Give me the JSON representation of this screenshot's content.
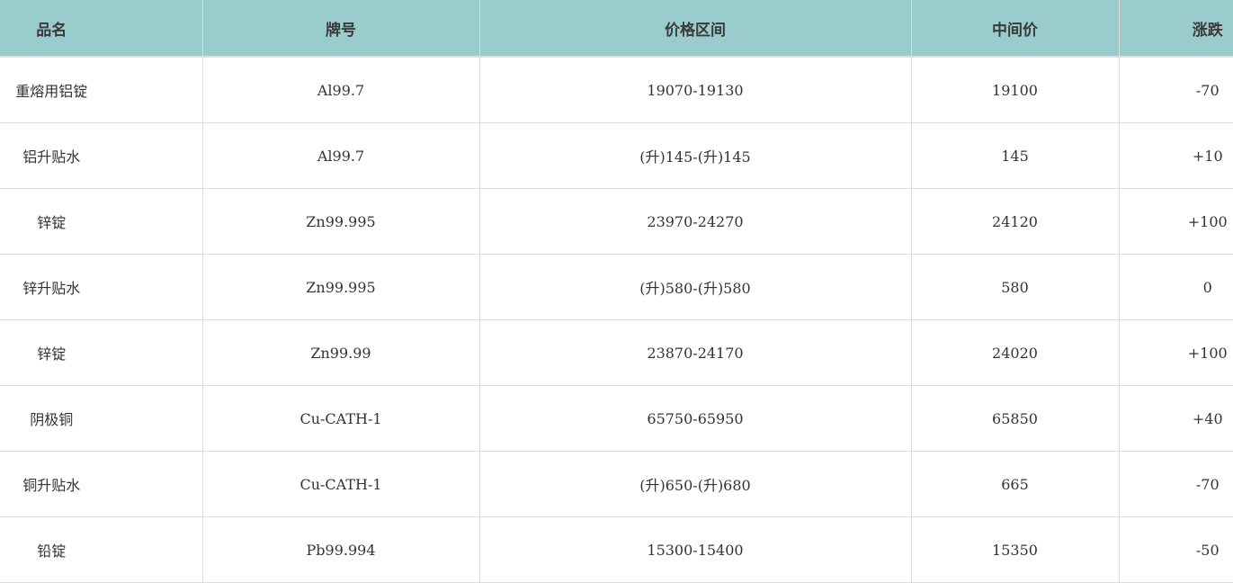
{
  "header_color": "#9acccd",
  "columns": [
    "品名",
    "牌号",
    "价格区间",
    "中间价",
    "涨跌"
  ],
  "rows": [
    [
      "重熔用铝锭",
      "Al99.7",
      "19070-19130",
      "19100",
      "-70"
    ],
    [
      "铝升贴水",
      "Al99.7",
      "(升)145-(升)145",
      "145",
      "+10"
    ],
    [
      "锌锭",
      "Zn99.995",
      "23970-24270",
      "24120",
      "+100"
    ],
    [
      "锌升贴水",
      "Zn99.995",
      "(升)580-(升)580",
      "580",
      "0"
    ],
    [
      "锌锭",
      "Zn99.99",
      "23870-24170",
      "24020",
      "+100"
    ],
    [
      "阴极铜",
      "Cu-CATH-1",
      "65750-65950",
      "65850",
      "+40"
    ],
    [
      "铜升贴水",
      "Cu-CATH-1",
      "(升)650-(升)680",
      "665",
      "-70"
    ],
    [
      "铅锭",
      "Pb99.994",
      "15300-15400",
      "15350",
      "-50"
    ]
  ]
}
